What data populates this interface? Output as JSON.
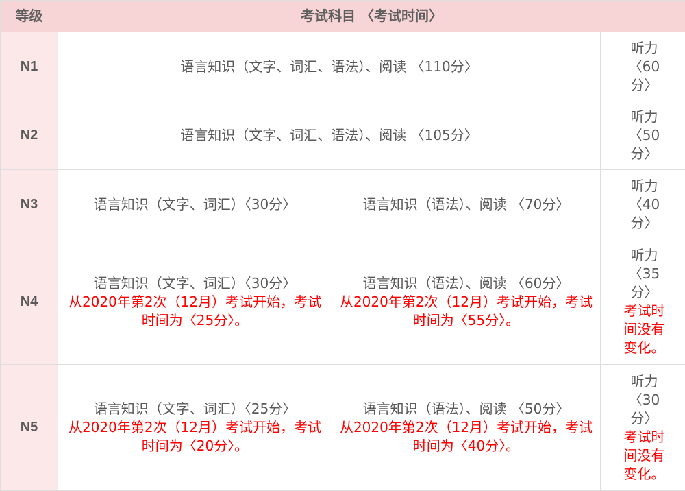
{
  "header": {
    "level": "等级",
    "subjects": "考试科目 〈考试时间〉"
  },
  "rows": [
    {
      "level": "N1",
      "merged": "语言知识（文字、词汇、语法）、阅读 〈110分〉",
      "listening": "听力〈60分〉"
    },
    {
      "level": "N2",
      "merged": "语言知识（文字、词汇、语法）、阅读 〈105分〉",
      "listening": "听力〈50分〉"
    },
    {
      "level": "N3",
      "vocab": "语言知识（文字、词汇）〈30分〉",
      "grammar": "语言知识（语法）、阅读 〈70分〉",
      "listening": "听力〈40分〉"
    },
    {
      "level": "N4",
      "vocab": "语言知识（文字、词汇）〈30分〉",
      "vocab_note": "从2020年第2次（12月）考试开始，考试时间为〈25分〉。",
      "grammar": "语言知识（语法）、阅读 〈60分〉",
      "grammar_note": "从2020年第2次（12月）考试开始，考试时间为〈55分〉。",
      "listening": "听力〈35分〉",
      "listening_note": "考试时间没有变化。"
    },
    {
      "level": "N5",
      "vocab": "语言知识（文字、词汇）〈25分〉",
      "vocab_note": "从2020年第2次（12月）考试开始，考试时间为〈20分〉。",
      "grammar": "语言知识（语法）、阅读 〈50分〉",
      "grammar_note": "从2020年第2次（12月）考试开始，考试时间为〈40分〉。",
      "listening": "听力〈30分〉",
      "listening_note": "考试时间没有变化。"
    }
  ],
  "colors": {
    "header_bg": "#f7d4d5",
    "level_bg": "#fce8e8",
    "note": "#ff0000",
    "text": "#5a5a5a"
  }
}
